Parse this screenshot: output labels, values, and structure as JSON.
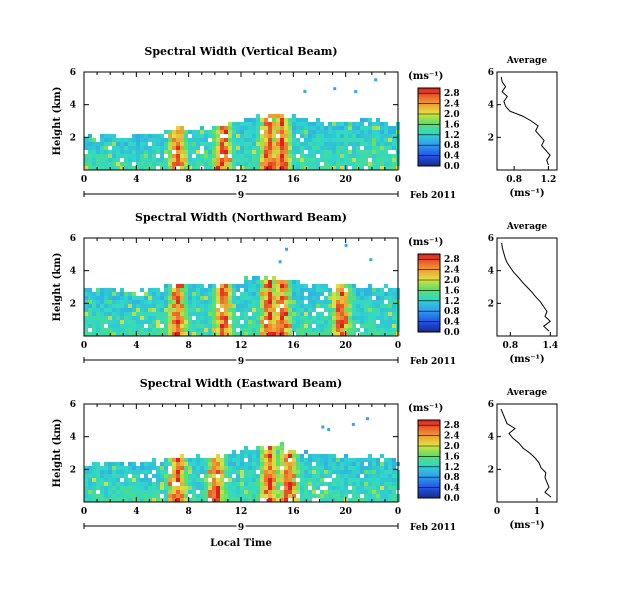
{
  "chart_data": [
    {
      "type": "heatmap",
      "title": "Spectral Width (Vertical Beam)",
      "ylabel": "Height (km)",
      "xlabel": "",
      "date_label": "9",
      "date_suffix": "Feb 2011",
      "xticks": [
        "0",
        "4",
        "8",
        "12",
        "16",
        "20",
        "0"
      ],
      "yticks": [
        "2",
        "4",
        "6"
      ],
      "xlim": [
        0,
        24
      ],
      "ylim": [
        0,
        6
      ],
      "colorbar": {
        "label": "(ms⁻¹)",
        "ticks": [
          "0.0",
          "0.4",
          "0.8",
          "1.2",
          "1.6",
          "2.0",
          "2.4",
          "2.8"
        ],
        "range": [
          0,
          3.0
        ]
      },
      "echo_top_km": [
        2.3,
        2.3,
        2.2,
        2.2,
        2.3,
        2.4,
        2.6,
        2.7,
        2.6,
        2.7,
        2.8,
        3.1,
        3.3,
        3.4,
        3.5,
        3.4,
        3.3,
        3.2,
        3.0,
        3.0,
        3.1,
        3.2,
        3.1,
        3.0
      ],
      "high_width_bands_hours": [
        7,
        10.5,
        14,
        15
      ],
      "profile": {
        "title": "Average",
        "xlabel": "(ms⁻¹)",
        "xticks": [
          "0.8",
          "1.2"
        ],
        "xlim": [
          0.6,
          1.3
        ],
        "yticks": [
          "2",
          "4",
          "6"
        ],
        "heights_km": [
          0.3,
          0.6,
          0.9,
          1.2,
          1.5,
          1.8,
          2.1,
          2.4,
          2.7,
          3.0,
          3.3,
          3.6,
          3.9,
          4.2,
          4.5,
          4.8,
          5.1,
          5.4,
          5.7
        ],
        "values": [
          1.2,
          1.18,
          1.22,
          1.17,
          1.12,
          1.15,
          1.1,
          1.05,
          1.08,
          1.0,
          0.9,
          0.75,
          0.7,
          0.68,
          0.72,
          0.66,
          0.7,
          0.66,
          0.65
        ]
      }
    },
    {
      "type": "heatmap",
      "title": "Spectral Width (Northward Beam)",
      "ylabel": "Height (km)",
      "xlabel": "",
      "date_label": "9",
      "date_suffix": "Feb 2011",
      "xticks": [
        "0",
        "4",
        "8",
        "12",
        "16",
        "20",
        "0"
      ],
      "yticks": [
        "2",
        "4",
        "6"
      ],
      "xlim": [
        0,
        24
      ],
      "ylim": [
        0,
        6
      ],
      "colorbar": {
        "label": "(ms⁻¹)",
        "ticks": [
          "0.0",
          "0.4",
          "0.8",
          "1.2",
          "1.6",
          "2.0",
          "2.4",
          "2.8"
        ],
        "range": [
          0,
          3.0
        ]
      },
      "echo_top_km": [
        3.0,
        3.1,
        2.9,
        2.8,
        2.9,
        3.0,
        3.2,
        3.3,
        3.3,
        3.2,
        3.3,
        3.4,
        3.6,
        3.7,
        3.7,
        3.6,
        3.4,
        3.3,
        3.2,
        3.3,
        3.3,
        3.2,
        3.1,
        3.0
      ],
      "high_width_bands_hours": [
        7,
        10.5,
        14,
        15,
        19.5
      ],
      "profile": {
        "title": "Average",
        "xlabel": "(ms⁻¹)",
        "xticks": [
          "0.8",
          "1.4"
        ],
        "xlim": [
          0.6,
          1.5
        ],
        "yticks": [
          "2",
          "4",
          "6"
        ],
        "heights_km": [
          0.3,
          0.6,
          0.9,
          1.2,
          1.5,
          1.8,
          2.1,
          2.4,
          2.7,
          3.0,
          3.3,
          3.6,
          3.9,
          4.2,
          4.5,
          4.8,
          5.1,
          5.4,
          5.7
        ],
        "values": [
          1.38,
          1.3,
          1.4,
          1.32,
          1.35,
          1.3,
          1.25,
          1.18,
          1.12,
          1.05,
          0.98,
          0.92,
          0.85,
          0.8,
          0.75,
          0.72,
          0.7,
          0.68,
          0.67
        ]
      }
    },
    {
      "type": "heatmap",
      "title": "Spectral Width (Eastward Beam)",
      "ylabel": "Height (km)",
      "xlabel": "Local Time",
      "date_label": "9",
      "date_suffix": "Feb 2011",
      "xticks": [
        "0",
        "4",
        "8",
        "12",
        "16",
        "20",
        "0"
      ],
      "yticks": [
        "2",
        "4",
        "6"
      ],
      "xlim": [
        0,
        24
      ],
      "ylim": [
        0,
        6
      ],
      "colorbar": {
        "label": "(ms⁻¹)",
        "ticks": [
          "0.0",
          "0.4",
          "0.8",
          "1.2",
          "1.6",
          "2.0",
          "2.4",
          "2.8"
        ],
        "range": [
          0,
          3.0
        ]
      },
      "echo_top_km": [
        2.5,
        2.5,
        2.4,
        2.4,
        2.5,
        2.6,
        2.8,
        2.9,
        2.9,
        2.8,
        3.0,
        3.2,
        3.4,
        3.5,
        3.6,
        3.4,
        3.3,
        3.1,
        3.0,
        2.9,
        2.9,
        2.9,
        2.8,
        2.7
      ],
      "high_width_bands_hours": [
        7,
        10,
        14,
        15.5
      ],
      "profile": {
        "title": "Average",
        "xlabel": "(ms⁻¹)",
        "xticks": [
          "0",
          "1"
        ],
        "xlim": [
          0,
          1.5
        ],
        "yticks": [
          "2",
          "4",
          "6"
        ],
        "heights_km": [
          0.3,
          0.6,
          0.9,
          1.2,
          1.5,
          1.8,
          2.1,
          2.4,
          2.7,
          3.0,
          3.3,
          3.6,
          3.9,
          4.2,
          4.5,
          4.8,
          5.1,
          5.4,
          5.7
        ],
        "values": [
          1.35,
          1.2,
          1.3,
          1.25,
          1.2,
          1.22,
          1.1,
          1.05,
          0.95,
          0.82,
          0.65,
          0.55,
          0.4,
          0.3,
          0.45,
          0.25,
          0.2,
          0.15,
          0.1
        ]
      }
    }
  ]
}
